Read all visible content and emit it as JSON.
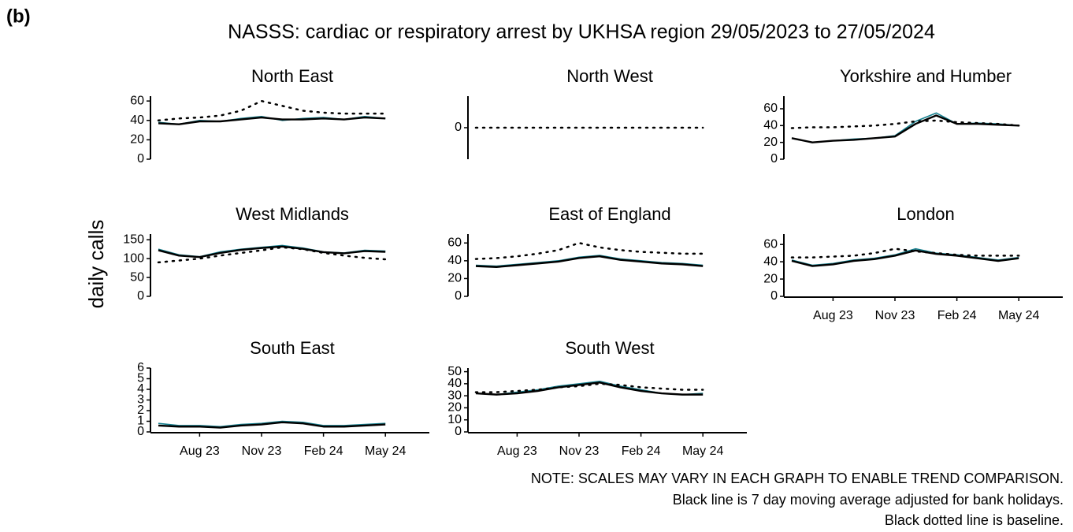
{
  "label": "(b)",
  "title": "NASSS: cardiac or respiratory arrest by UKHSA region 29/05/2023 to 27/05/2024",
  "y_label": "daily calls",
  "notes": [
    "NOTE: SCALES MAY VARY IN EACH GRAPH TO ENABLE TREND COMPARISON.",
    "Black line is 7 day moving average adjusted for bank holidays.",
    "Black dotted line is baseline."
  ],
  "chart_data": [
    {
      "type": "line",
      "title": "North East",
      "categories": [
        null,
        null,
        null,
        null,
        null,
        null,
        null,
        null,
        null,
        null,
        null,
        null
      ],
      "ylim": [
        0,
        65
      ],
      "yticks": [
        0,
        20,
        40,
        60
      ],
      "series": [
        {
          "color": "#16808f",
          "values": [
            38,
            36,
            40,
            39,
            42,
            44,
            40,
            42,
            43,
            41,
            44,
            42
          ]
        },
        {
          "color": "#000000",
          "values": [
            37,
            36,
            39,
            39,
            41,
            43,
            41,
            41,
            42,
            41,
            43,
            42
          ]
        },
        {
          "color": "#000000",
          "dotted": true,
          "values": [
            40,
            42,
            43,
            45,
            50,
            60,
            55,
            50,
            48,
            47,
            47,
            47
          ]
        }
      ]
    },
    {
      "type": "line",
      "title": "North West",
      "categories": [
        null,
        null,
        null,
        null,
        null,
        null,
        null,
        null,
        null,
        null,
        null,
        null
      ],
      "ylim": [
        -1,
        1
      ],
      "yticks": [
        0
      ],
      "series": [
        {
          "color": "#000000",
          "dotted": true,
          "values": [
            0,
            0,
            0,
            0,
            0,
            0,
            0,
            0,
            0,
            0,
            0,
            0
          ]
        }
      ]
    },
    {
      "type": "line",
      "title": "Yorkshire and Humber",
      "categories": [
        null,
        null,
        null,
        null,
        null,
        null,
        null,
        null,
        null,
        null,
        null,
        null
      ],
      "ylim": [
        0,
        75
      ],
      "yticks": [
        0,
        20,
        40,
        60
      ],
      "series": [
        {
          "color": "#16808f",
          "values": [
            25,
            20,
            22,
            24,
            25,
            28,
            45,
            55,
            42,
            43,
            42,
            40
          ]
        },
        {
          "color": "#000000",
          "values": [
            25,
            20,
            22,
            23,
            25,
            27,
            42,
            52,
            42,
            42,
            41,
            40
          ]
        },
        {
          "color": "#000000",
          "dotted": true,
          "values": [
            37,
            38,
            38,
            39,
            40,
            42,
            45,
            46,
            44,
            43,
            42,
            40
          ]
        }
      ]
    },
    {
      "type": "line",
      "title": "West Midlands",
      "categories": [
        null,
        null,
        null,
        null,
        null,
        null,
        null,
        null,
        null,
        null,
        null,
        null
      ],
      "ylim": [
        0,
        165
      ],
      "yticks": [
        0,
        50,
        100,
        150
      ],
      "series": [
        {
          "color": "#16808f",
          "values": [
            125,
            110,
            105,
            118,
            125,
            130,
            135,
            128,
            118,
            115,
            122,
            120
          ]
        },
        {
          "color": "#000000",
          "values": [
            122,
            108,
            104,
            115,
            123,
            128,
            132,
            126,
            117,
            114,
            120,
            118
          ]
        },
        {
          "color": "#000000",
          "dotted": true,
          "values": [
            90,
            95,
            100,
            108,
            115,
            122,
            130,
            125,
            115,
            108,
            102,
            98
          ]
        }
      ]
    },
    {
      "type": "line",
      "title": "East of England",
      "categories": [
        null,
        null,
        null,
        null,
        null,
        null,
        null,
        null,
        null,
        null,
        null,
        null
      ],
      "ylim": [
        0,
        70
      ],
      "yticks": [
        0,
        20,
        40,
        60
      ],
      "series": [
        {
          "color": "#16808f",
          "values": [
            35,
            34,
            36,
            38,
            40,
            44,
            46,
            42,
            40,
            38,
            37,
            35
          ]
        },
        {
          "color": "#000000",
          "values": [
            34,
            33,
            35,
            37,
            39,
            43,
            45,
            41,
            39,
            37,
            36,
            34
          ]
        },
        {
          "color": "#000000",
          "dotted": true,
          "values": [
            42,
            43,
            45,
            48,
            52,
            60,
            55,
            52,
            50,
            49,
            48,
            48
          ]
        }
      ]
    },
    {
      "type": "line",
      "title": "London",
      "categories": [
        null,
        null,
        "Aug 23",
        null,
        null,
        "Nov 23",
        null,
        null,
        "Feb 24",
        null,
        null,
        "May 24"
      ],
      "ylim": [
        0,
        72
      ],
      "yticks": [
        0,
        20,
        40,
        60
      ],
      "series": [
        {
          "color": "#16808f",
          "values": [
            42,
            36,
            38,
            42,
            44,
            48,
            55,
            50,
            48,
            45,
            42,
            45
          ]
        },
        {
          "color": "#000000",
          "values": [
            41,
            35,
            37,
            41,
            43,
            47,
            53,
            49,
            47,
            44,
            41,
            44
          ]
        },
        {
          "color": "#000000",
          "dotted": true,
          "values": [
            45,
            45,
            46,
            47,
            50,
            55,
            52,
            50,
            48,
            47,
            47,
            47
          ]
        }
      ]
    },
    {
      "type": "line",
      "title": "South East",
      "categories": [
        null,
        null,
        "Aug 23",
        null,
        null,
        "Nov 23",
        null,
        null,
        "Feb 24",
        null,
        null,
        "May 24"
      ],
      "ylim": [
        0,
        6
      ],
      "yticks": [
        0,
        1,
        2,
        3,
        4,
        5,
        6
      ],
      "series": [
        {
          "color": "#16808f",
          "values": [
            0.8,
            0.6,
            0.6,
            0.5,
            0.7,
            0.8,
            1.0,
            0.9,
            0.6,
            0.6,
            0.7,
            0.8
          ]
        },
        {
          "color": "#000000",
          "values": [
            0.6,
            0.5,
            0.5,
            0.4,
            0.6,
            0.7,
            0.9,
            0.8,
            0.5,
            0.5,
            0.6,
            0.7
          ]
        }
      ]
    },
    {
      "type": "line",
      "title": "South West",
      "categories": [
        null,
        null,
        "Aug 23",
        null,
        null,
        "Nov 23",
        null,
        null,
        "Feb 24",
        null,
        null,
        "May 24"
      ],
      "ylim": [
        0,
        53
      ],
      "yticks": [
        0,
        10,
        20,
        30,
        40,
        50
      ],
      "series": [
        {
          "color": "#16808f",
          "values": [
            32,
            31,
            33,
            35,
            38,
            40,
            42,
            38,
            35,
            32,
            31,
            32
          ]
        },
        {
          "color": "#000000",
          "values": [
            32,
            31,
            32,
            34,
            37,
            39,
            41,
            37,
            34,
            32,
            31,
            31
          ]
        },
        {
          "color": "#000000",
          "dotted": true,
          "values": [
            33,
            33,
            34,
            35,
            37,
            38,
            40,
            39,
            37,
            36,
            35,
            35
          ]
        }
      ]
    }
  ]
}
